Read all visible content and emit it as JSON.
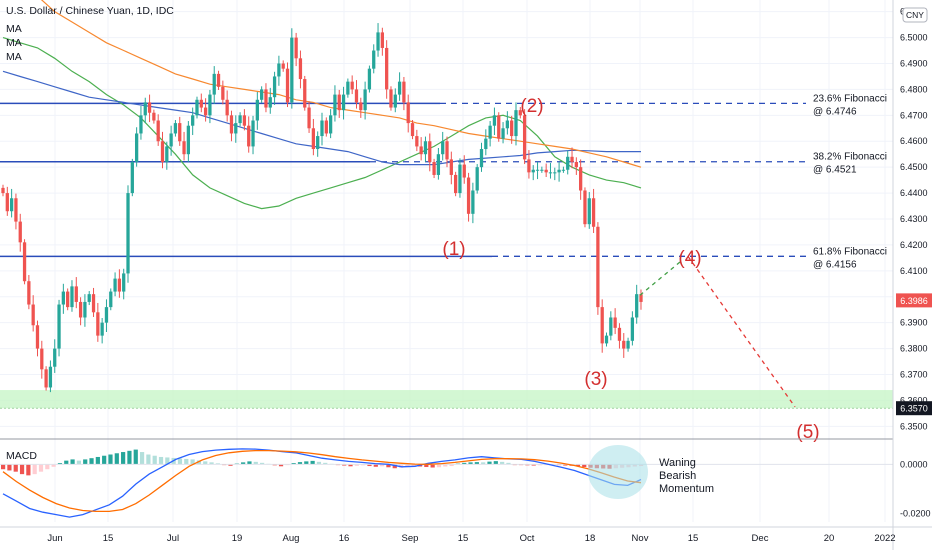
{
  "header": {
    "symbol_title": "U.S. Dollar / Chinese Yuan, 1D, IDC",
    "indicators": [
      "MA",
      "MA",
      "MA"
    ],
    "currency_badge": "CNY"
  },
  "macd_label": "MACD",
  "price_badges": [
    {
      "price": 6.3986,
      "label": "6.3986",
      "color": "#ef5350"
    },
    {
      "price": 6.357,
      "label": "6.3570",
      "color": "#131722"
    }
  ],
  "chart_data": [
    {
      "type": "candlestick",
      "title": "U.S. Dollar / Chinese Yuan, 1D, IDC",
      "y_axis": {
        "ylim": [
          6.3455,
          6.5145
        ],
        "ticks": [
          "6.3500",
          "6.3600",
          "6.3700",
          "6.3800",
          "6.3900",
          "6.4000",
          "6.4100",
          "6.4200",
          "6.4300",
          "6.4400",
          "6.4500",
          "6.4600",
          "6.4700",
          "6.4800",
          "6.4900",
          "6.5000",
          "6.5100"
        ]
      },
      "x_axis": {
        "tick_labels": [
          "Jun",
          "15",
          "Jul",
          "19",
          "Aug",
          "16",
          "Sep",
          "15",
          "Oct",
          "18",
          "Nov",
          "15",
          "Dec",
          "20",
          "2022"
        ]
      },
      "grid": true,
      "colors": {
        "up": "#26a69a",
        "down": "#ef5350",
        "ma_fast": "#4caf50",
        "ma_mid": "#3f66c7",
        "ma_slow": "#f7882f",
        "level": "#2a4cba",
        "support_zone": "#c8f5c8"
      },
      "candle_closes": [
        6.44,
        6.433,
        6.438,
        6.429,
        6.421,
        6.406,
        6.397,
        6.389,
        6.38,
        6.372,
        6.365,
        6.373,
        6.38,
        6.397,
        6.402,
        6.396,
        6.404,
        6.398,
        6.392,
        6.398,
        6.401,
        6.394,
        6.385,
        6.39,
        6.396,
        6.402,
        6.407,
        6.402,
        6.409,
        6.44,
        6.452,
        6.463,
        6.47,
        6.475,
        6.471,
        6.468,
        6.46,
        6.452,
        6.458,
        6.463,
        6.467,
        6.46,
        6.455,
        6.466,
        6.47,
        6.476,
        6.473,
        6.47,
        6.478,
        6.486,
        6.481,
        6.476,
        6.47,
        6.463,
        6.467,
        6.47,
        6.466,
        6.458,
        6.468,
        6.476,
        6.48,
        6.473,
        6.477,
        6.485,
        6.49,
        6.488,
        6.475,
        6.5,
        6.492,
        6.484,
        6.473,
        6.465,
        6.457,
        6.462,
        6.468,
        6.463,
        6.47,
        6.478,
        6.472,
        6.478,
        6.483,
        6.48,
        6.475,
        6.472,
        6.48,
        6.488,
        6.495,
        6.502,
        6.496,
        6.48,
        6.473,
        6.478,
        6.483,
        6.475,
        6.467,
        6.462,
        6.458,
        6.455,
        6.46,
        6.452,
        6.447,
        6.455,
        6.46,
        6.453,
        6.447,
        6.44,
        6.451,
        6.446,
        6.432,
        6.441,
        6.45,
        6.457,
        6.461,
        6.466,
        6.47,
        6.461,
        6.465,
        6.468,
        6.462,
        6.472,
        6.47,
        6.453,
        6.448,
        6.449,
        6.449,
        6.449,
        6.448,
        6.448,
        6.448,
        6.449,
        6.449,
        6.454,
        6.452,
        6.45,
        6.441,
        6.428,
        6.438,
        6.427,
        6.396,
        6.382,
        6.385,
        6.392,
        6.388,
        6.383,
        6.38,
        6.383,
        6.392,
        6.401,
        6.398
      ],
      "moving_averages": [
        {
          "key": "ma_fast",
          "values": [
            6.5,
            6.498,
            6.496,
            6.492,
            6.487,
            6.483,
            6.478,
            6.474,
            6.469,
            6.462,
            6.455,
            6.447,
            6.442,
            6.439,
            6.436,
            6.434,
            6.435,
            6.438,
            6.44,
            6.442,
            6.444,
            6.446,
            6.449,
            6.452,
            6.455,
            6.458,
            6.462,
            6.466,
            6.469,
            6.47,
            6.468,
            6.462,
            6.454,
            6.45,
            6.447,
            6.445,
            6.444,
            6.442
          ]
        },
        {
          "key": "ma_mid",
          "values": [
            6.487,
            6.485,
            6.483,
            6.481,
            6.479,
            6.477,
            6.476,
            6.475,
            6.474,
            6.473,
            6.472,
            6.471,
            6.469,
            6.467,
            6.465,
            6.463,
            6.461,
            6.459,
            6.458,
            6.457,
            6.456,
            6.454,
            6.452,
            6.451,
            6.451,
            6.451,
            6.452,
            6.453,
            6.4535,
            6.454,
            6.4545,
            6.4555,
            6.456,
            6.4565,
            6.4563,
            6.456,
            6.456,
            6.456
          ]
        },
        {
          "key": "ma_slow",
          "values": [
            6.528,
            6.522,
            6.516,
            6.51,
            6.506,
            6.502,
            6.498,
            6.495,
            6.492,
            6.489,
            6.486,
            6.484,
            6.482,
            6.481,
            6.48,
            6.479,
            6.478,
            6.476,
            6.475,
            6.473,
            6.472,
            6.471,
            6.47,
            6.469,
            6.467,
            6.466,
            6.4645,
            6.463,
            6.462,
            6.461,
            6.46,
            6.459,
            6.458,
            6.457,
            6.4555,
            6.454,
            6.452,
            6.45
          ]
        }
      ],
      "levels": [
        {
          "name": "23.6% Fibonacci",
          "value": "@ 6.4746",
          "price": 6.4746
        },
        {
          "name": "38.2% Fibonacci",
          "value": "@ 6.4521",
          "price": 6.4521
        },
        {
          "name": "61.8% Fibonacci",
          "value": "@ 6.4156",
          "price": 6.4156
        }
      ],
      "support_zone": [
        6.357,
        6.364
      ],
      "wave_labels": [
        "(1)",
        "(2)",
        "(3)",
        "(4)",
        "(5)"
      ],
      "projection": [
        {
          "date": "Nov 12",
          "price": 6.4156
        },
        {
          "date": "Dec 10",
          "price": 6.3575
        }
      ]
    },
    {
      "type": "macd",
      "title": "MACD",
      "ylim": [
        -0.0235,
        0.0095
      ],
      "ticks": [
        "0.0000",
        "-0.0200"
      ],
      "histogram": [
        -0.002,
        -0.0025,
        -0.003,
        -0.004,
        -0.0045,
        -0.004,
        -0.003,
        -0.002,
        -0.001,
        0.0005,
        0.0015,
        0.002,
        0.0015,
        0.002,
        0.0025,
        0.003,
        0.0035,
        0.004,
        0.0045,
        0.005,
        0.0055,
        0.006,
        0.005,
        0.004,
        0.0035,
        0.003,
        0.0028,
        0.0026,
        0.0024,
        0.0022,
        0.002,
        0.0016,
        0.0012,
        0.0008,
        0.0004,
        -0.0002,
        -0.0006,
        0.0003,
        0.0008,
        0.0012,
        0.001,
        0.0006,
        0.0002,
        -0.0004,
        -0.0008,
        -0.0003,
        0.0005,
        0.0009,
        0.0012,
        0.0014,
        0.001,
        0.0006,
        0.0002,
        -0.0002,
        -0.0005,
        -0.0008,
        -0.0006,
        -0.0004,
        -0.0007,
        -0.001,
        -0.0008,
        -0.0012,
        -0.0016,
        -0.0014,
        -0.0011,
        -0.0008,
        -0.0009,
        -0.0011,
        -0.0013,
        -0.0012,
        -0.0009,
        -0.0007,
        0.0003,
        0.0006,
        0.0008,
        0.0009,
        0.0008,
        0.0011,
        0.0013,
        0.001,
        0.0006,
        -0.0002,
        -0.0003,
        -0.0004,
        -0.0005,
        -0.0004,
        -0.0002,
        -0.0001,
        -0.0003,
        -0.0005,
        -0.0006,
        -0.0008,
        -0.0011,
        -0.0014,
        -0.0016,
        -0.0017,
        -0.0018,
        -0.0016,
        -0.0014,
        -0.0012,
        -0.0009,
        -0.0007
      ],
      "macd_line": [
        -0.012,
        -0.015,
        -0.018,
        -0.0195,
        -0.0205,
        -0.0215,
        -0.0205,
        -0.0185,
        -0.0165,
        -0.013,
        -0.008,
        -0.004,
        -0.001,
        0.002,
        0.004,
        0.0052,
        0.0058,
        0.0061,
        0.0063,
        0.0062,
        0.0058,
        0.0052,
        0.0047,
        0.0036,
        0.0025,
        0.0018,
        0.0012,
        0.0008,
        0.0003,
        0.0,
        -0.001,
        -0.0008,
        0.0004,
        0.0012,
        0.0018,
        0.0026,
        0.0031,
        0.0026,
        0.0022,
        0.002,
        0.0012,
        0.0,
        -0.0012,
        -0.0025,
        -0.0044,
        -0.0063,
        -0.0082,
        -0.0086,
        -0.0062
      ],
      "signal_line": [
        -0.003,
        -0.007,
        -0.0105,
        -0.0135,
        -0.016,
        -0.0178,
        -0.0188,
        -0.0192,
        -0.0192,
        -0.0184,
        -0.016,
        -0.0125,
        -0.0085,
        -0.0045,
        -0.0008,
        0.0018,
        0.0036,
        0.0047,
        0.0053,
        0.0056,
        0.0056,
        0.0054,
        0.0051,
        0.0046,
        0.0039,
        0.0031,
        0.0024,
        0.0018,
        0.0013,
        0.0008,
        0.0004,
        0.0001,
        0.0,
        0.0003,
        0.0008,
        0.0014,
        0.002,
        0.0023,
        0.0023,
        0.0022,
        0.0019,
        0.0013,
        0.0005,
        -0.0005,
        -0.0018,
        -0.0034,
        -0.0052,
        -0.0068,
        -0.0075
      ],
      "annotation": [
        "Waning",
        "Bearish",
        "Momentum"
      ]
    }
  ]
}
